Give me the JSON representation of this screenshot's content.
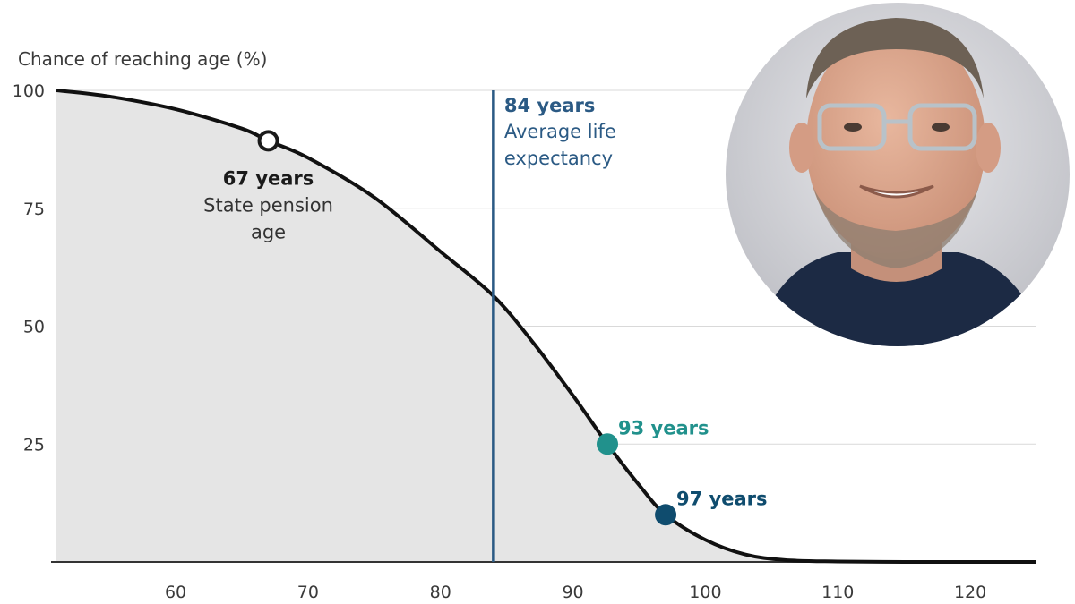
{
  "chart_data": {
    "type": "area",
    "ylabel": "Chance of reaching age (%)",
    "xlim": [
      51,
      125
    ],
    "ylim": [
      0,
      100
    ],
    "x_ticks": [
      60,
      70,
      80,
      90,
      100,
      110,
      120
    ],
    "y_ticks": [
      25,
      50,
      75,
      100
    ],
    "grid": true,
    "series": [
      {
        "x": [
          51,
          55,
          60,
          65,
          67,
          70,
          75,
          80,
          84,
          87,
          90,
          92.6,
          95,
          97,
          100,
          103,
          106,
          110,
          115,
          120,
          125
        ],
        "y": [
          100,
          98.7,
          96.0,
          91.9,
          89.3,
          85.7,
          77.3,
          65.8,
          56.4,
          46.5,
          35.3,
          25.0,
          16.3,
          10.0,
          4.7,
          1.6,
          0.4,
          0.1,
          0,
          0,
          0
        ]
      }
    ],
    "annotations": [
      {
        "id": "pension",
        "x": 67,
        "y": 89.3,
        "bold": "67 years",
        "lines": [
          "State pension",
          "age"
        ],
        "color": "#1a1a1a",
        "marker": "hollow-circle"
      },
      {
        "id": "avg",
        "x": 84,
        "bold": "84 years",
        "lines": [
          "Average life",
          "expectancy"
        ],
        "color": "#2b5a84",
        "marker": "vertical-line"
      },
      {
        "id": "p25",
        "x": 92.6,
        "y": 25,
        "bold": "93 years",
        "lines": [],
        "color": "#21918c",
        "marker": "filled-circle"
      },
      {
        "id": "p10",
        "x": 97,
        "y": 10,
        "bold": "97 years",
        "lines": [],
        "color": "#0f4c6e",
        "marker": "filled-circle"
      }
    ],
    "colors": {
      "line": "#111111",
      "fill": "#e5e5e5",
      "grid": "#d9d9d9",
      "axis": "#333333"
    }
  },
  "photo": {
    "subject": "portrait of a smiling man with glasses and a beard"
  }
}
